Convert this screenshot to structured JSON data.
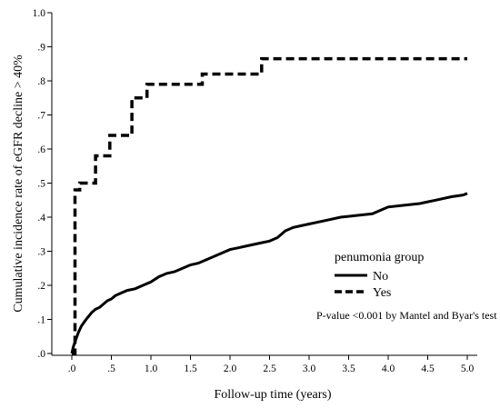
{
  "chart_data": {
    "type": "line",
    "title": "",
    "xlabel": "Follow-up time (years)",
    "ylabel": "Cumulative incidence rate of eGFR decline > 40%",
    "xlim": [
      0,
      5
    ],
    "ylim": [
      0,
      1
    ],
    "x_ticks": [
      0,
      0.5,
      1,
      1.5,
      2,
      2.5,
      3,
      3.5,
      4,
      4.5,
      5
    ],
    "x_tick_labels": [
      ".0",
      ".5",
      "1.0",
      "1.5",
      "2.0",
      "2.5",
      "3.0",
      "3.5",
      "4.0",
      "4.5",
      "5.0"
    ],
    "y_ticks": [
      0,
      0.1,
      0.2,
      0.3,
      0.4,
      0.5,
      0.6,
      0.7,
      0.8,
      0.9,
      1.0
    ],
    "y_tick_labels": [
      ".0",
      ".1",
      ".2",
      ".3",
      ".4",
      ".5",
      ".6",
      ".7",
      ".8",
      ".9",
      "1.0"
    ],
    "grid": false,
    "legend": {
      "title": "penumonia group",
      "placement": "lower-right"
    },
    "annotation": "P-value <0.001 by Mantel and Byar's test",
    "series": [
      {
        "name": "No",
        "style": "solid",
        "color": "#000000",
        "x": [
          0,
          0.02,
          0.05,
          0.08,
          0.12,
          0.18,
          0.25,
          0.3,
          0.35,
          0.4,
          0.45,
          0.5,
          0.55,
          0.6,
          0.7,
          0.8,
          0.9,
          1.0,
          1.1,
          1.2,
          1.3,
          1.4,
          1.5,
          1.6,
          1.7,
          1.8,
          1.9,
          2.0,
          2.1,
          2.2,
          2.3,
          2.4,
          2.5,
          2.6,
          2.7,
          2.8,
          2.9,
          3.0,
          3.2,
          3.4,
          3.6,
          3.8,
          3.9,
          4.0,
          4.2,
          4.4,
          4.5,
          4.6,
          4.8,
          4.95,
          5.0
        ],
        "y": [
          0,
          0.02,
          0.04,
          0.06,
          0.08,
          0.1,
          0.12,
          0.13,
          0.135,
          0.145,
          0.155,
          0.16,
          0.17,
          0.175,
          0.185,
          0.19,
          0.2,
          0.21,
          0.225,
          0.235,
          0.24,
          0.25,
          0.26,
          0.265,
          0.275,
          0.285,
          0.295,
          0.305,
          0.31,
          0.315,
          0.32,
          0.325,
          0.33,
          0.34,
          0.36,
          0.37,
          0.375,
          0.38,
          0.39,
          0.4,
          0.405,
          0.41,
          0.42,
          0.43,
          0.435,
          0.44,
          0.445,
          0.45,
          0.46,
          0.465,
          0.47
        ]
      },
      {
        "name": "Yes",
        "style": "dashed",
        "color": "#000000",
        "x": [
          0,
          0.04,
          0.06,
          0.1,
          0.25,
          0.3,
          0.4,
          0.48,
          0.7,
          0.76,
          0.85,
          0.95,
          1.25,
          1.6,
          1.65,
          2.1,
          2.35,
          2.4,
          5.0
        ],
        "y": [
          0,
          0.48,
          0.48,
          0.5,
          0.5,
          0.58,
          0.58,
          0.64,
          0.64,
          0.75,
          0.75,
          0.79,
          0.79,
          0.79,
          0.82,
          0.82,
          0.82,
          0.865,
          0.865
        ]
      }
    ]
  }
}
